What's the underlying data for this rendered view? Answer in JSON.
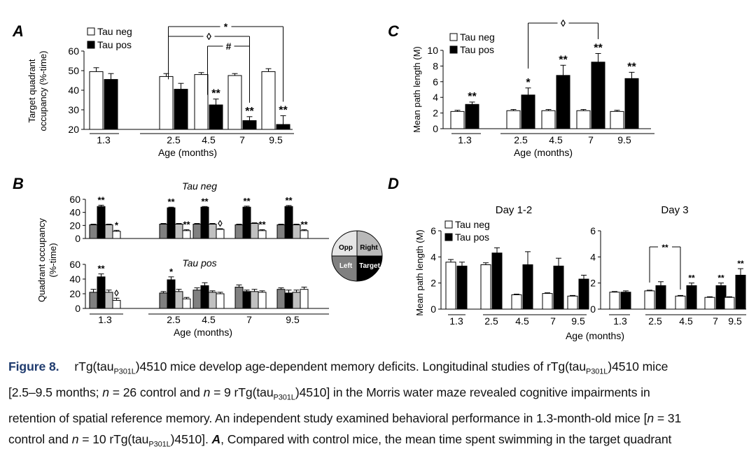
{
  "chart_data": [
    {
      "panel": "A",
      "type": "bar",
      "categories": [
        "1.3",
        "2.5",
        "4.5",
        "7",
        "9.5"
      ],
      "xlabel": "Age (months)",
      "ylabel": "Target quadrant occupancy (%-time)",
      "ylabel_lines": [
        "Target quadrant",
        "occupancy (%-time)"
      ],
      "yticks": [
        "20",
        "30",
        "40",
        "50",
        "60"
      ],
      "ylim": [
        20,
        60
      ],
      "legend": [
        "Tau neg",
        "Tau pos"
      ],
      "series": [
        {
          "name": "Tau neg",
          "values": [
            49.5,
            47,
            48,
            47.5,
            49.5
          ],
          "errors": [
            2,
            1.5,
            1,
            1,
            1.5
          ]
        },
        {
          "name": "Tau pos",
          "values": [
            45.5,
            40.5,
            32.5,
            24.5,
            22.5
          ],
          "errors": [
            3,
            3,
            3,
            2,
            4.5
          ]
        }
      ],
      "bar_marks": [
        "",
        "",
        "**",
        "**",
        "**"
      ],
      "brackets": [
        {
          "from": 1,
          "to": 4,
          "label": "*"
        },
        {
          "from": 1,
          "to": 3,
          "label": "◊"
        },
        {
          "from": 2,
          "to": 3,
          "label": "#"
        }
      ]
    },
    {
      "panel": "C",
      "type": "bar",
      "categories": [
        "1.3",
        "2.5",
        "4.5",
        "7",
        "9.5"
      ],
      "xlabel": "Age (months)",
      "ylabel": "Mean path length (M)",
      "yticks": [
        "0",
        "2",
        "4",
        "6",
        "8",
        "10"
      ],
      "ylim": [
        0,
        10
      ],
      "legend": [
        "Tau neg",
        "Tau pos"
      ],
      "series": [
        {
          "name": "Tau neg",
          "values": [
            2.2,
            2.3,
            2.3,
            2.3,
            2.2
          ],
          "errors": [
            0.15,
            0.15,
            0.15,
            0.15,
            0.15
          ]
        },
        {
          "name": "Tau pos",
          "values": [
            3.1,
            4.3,
            6.8,
            8.5,
            6.4
          ],
          "errors": [
            0.3,
            0.9,
            1.3,
            1.1,
            0.8
          ]
        }
      ],
      "bar_marks": [
        "**",
        "*",
        "**",
        "**",
        "**"
      ],
      "brackets": [
        {
          "from": 1,
          "to": 3,
          "label": "◊"
        }
      ]
    },
    {
      "panel": "B",
      "type": "bar",
      "categories": [
        "1.3",
        "2.5",
        "4.5",
        "7",
        "9.5"
      ],
      "xlabel": "Age (months)",
      "ylabel": "Quadrant occupancy (%-time)",
      "ylabel_lines": [
        "Quadrant occupancy",
        "(%-time)"
      ],
      "yticks": [
        "0",
        "20",
        "40",
        "60"
      ],
      "ylim": [
        0,
        60
      ],
      "quadrants": [
        "Opp",
        "Target",
        "Right",
        "Left"
      ],
      "legend_labels": {
        "opp": "Opp",
        "right": "Right",
        "left": "Left",
        "target": "Target"
      },
      "subplots": [
        {
          "title": "Tau neg",
          "values": [
            [
              21,
              49,
              21,
              11
            ],
            [
              22,
              47,
              22,
              12
            ],
            [
              22,
              48,
              22,
              14
            ],
            [
              21,
              48,
              23,
              12
            ],
            [
              21,
              49,
              21,
              12
            ]
          ],
          "errors": [
            [
              1,
              2,
              1,
              1.5
            ],
            [
              1,
              1,
              1,
              1.5
            ],
            [
              1,
              1,
              1,
              1
            ],
            [
              1,
              1.5,
              1,
              1.5
            ],
            [
              1,
              1.5,
              1,
              1.5
            ]
          ],
          "marks": [
            [
              "",
              "**",
              "",
              "*"
            ],
            [
              "",
              "**",
              "",
              "**"
            ],
            [
              "",
              "**",
              "",
              "◊"
            ],
            [
              "",
              "**",
              "",
              "**"
            ],
            [
              "",
              "**",
              "",
              "**"
            ]
          ]
        },
        {
          "title": "Tau pos",
          "values": [
            [
              22,
              43,
              22,
              11
            ],
            [
              21,
              39,
              23,
              13
            ],
            [
              25,
              31,
              22,
              20
            ],
            [
              29,
              23,
              23,
              22
            ],
            [
              26,
              21,
              22,
              26
            ]
          ],
          "errors": [
            [
              4,
              4,
              3,
              3
            ],
            [
              2,
              4,
              3,
              2
            ],
            [
              3,
              4,
              2,
              2
            ],
            [
              3,
              2,
              3,
              2
            ],
            [
              2,
              4,
              3,
              3
            ]
          ],
          "marks": [
            [
              "",
              "**",
              "",
              "◊"
            ],
            [
              "",
              "*",
              "",
              ""
            ],
            [
              "",
              "",
              "",
              ""
            ],
            [
              "",
              "",
              "",
              ""
            ],
            [
              "",
              "",
              "",
              ""
            ]
          ]
        }
      ]
    },
    {
      "panel": "D",
      "type": "bar",
      "ylabel": "Mean path length (M)",
      "xlabel": "Age (months)",
      "legend": [
        "Tau neg",
        "Tau pos"
      ],
      "subplots": [
        {
          "title": "Day 1-2",
          "categories": [
            "1.3",
            "2.5",
            "4.5",
            "7",
            "9.5"
          ],
          "yticks": [
            "0",
            "2",
            "4",
            "6"
          ],
          "ylim": [
            0,
            6
          ],
          "series": [
            {
              "name": "Tau neg",
              "values": [
                3.6,
                3.4,
                1.1,
                1.2,
                1.0
              ],
              "errors": [
                0.2,
                0.15,
                0.05,
                0.05,
                0.05
              ]
            },
            {
              "name": "Tau pos",
              "values": [
                3.3,
                4.3,
                3.4,
                3.3,
                2.3
              ],
              "errors": [
                0.3,
                0.4,
                1.0,
                0.6,
                0.3
              ]
            }
          ],
          "bar_marks": [
            "",
            "",
            "",
            "",
            ""
          ]
        },
        {
          "title": "Day 3",
          "categories": [
            "1.3",
            "2.5",
            "4.5",
            "7",
            "9.5"
          ],
          "yticks": [
            "0",
            "2",
            "4",
            "6"
          ],
          "ylim": [
            0,
            6
          ],
          "series": [
            {
              "name": "Tau neg",
              "values": [
                1.3,
                1.4,
                1.0,
                0.9,
                0.9
              ],
              "errors": [
                0.05,
                0.05,
                0.05,
                0.05,
                0.05
              ]
            },
            {
              "name": "Tau pos",
              "values": [
                1.3,
                1.8,
                1.8,
                1.8,
                2.6
              ],
              "errors": [
                0.1,
                0.3,
                0.2,
                0.2,
                0.5
              ]
            }
          ],
          "bar_marks": [
            "",
            "",
            "**",
            "**",
            "**"
          ],
          "brackets": [
            {
              "from": 1,
              "to": 2,
              "label": "**"
            }
          ]
        }
      ]
    }
  ],
  "caption": {
    "fig_label": "Figure 8.",
    "title_text": "rTg(tau",
    "subscript": "P301L",
    "title_rest": ")4510 mice develop age-dependent memory deficits. Longitudinal studies of rTg(tau",
    "line1_end": ")4510 mice",
    "line2_a": "[2.5–9.5 months; ",
    "n_symbol": "n",
    "line2_b": " = 26 control and ",
    "line2_c": " = 9 rTg(tau",
    "line2_d": ")4510] in the Morris water maze revealed cognitive impairments in",
    "line3": "retention of spatial reference memory. An independent study examined behavioral performance in 1.3-month-old mice [",
    "line3_b": " = 31",
    "line4_a": "control and ",
    "line4_b": " = 10 rTg(tau",
    "line4_c": ")4510]. ",
    "panel_a_ref": "A",
    "line4_d": ", Compared with control mice, the mean time spent swimming in the target quadrant"
  },
  "colors": {
    "neg": "#ffffff",
    "pos": "#000000",
    "opp": "#808080",
    "side": "#c0c0c0",
    "caption_fig": "#1f3b6e"
  }
}
